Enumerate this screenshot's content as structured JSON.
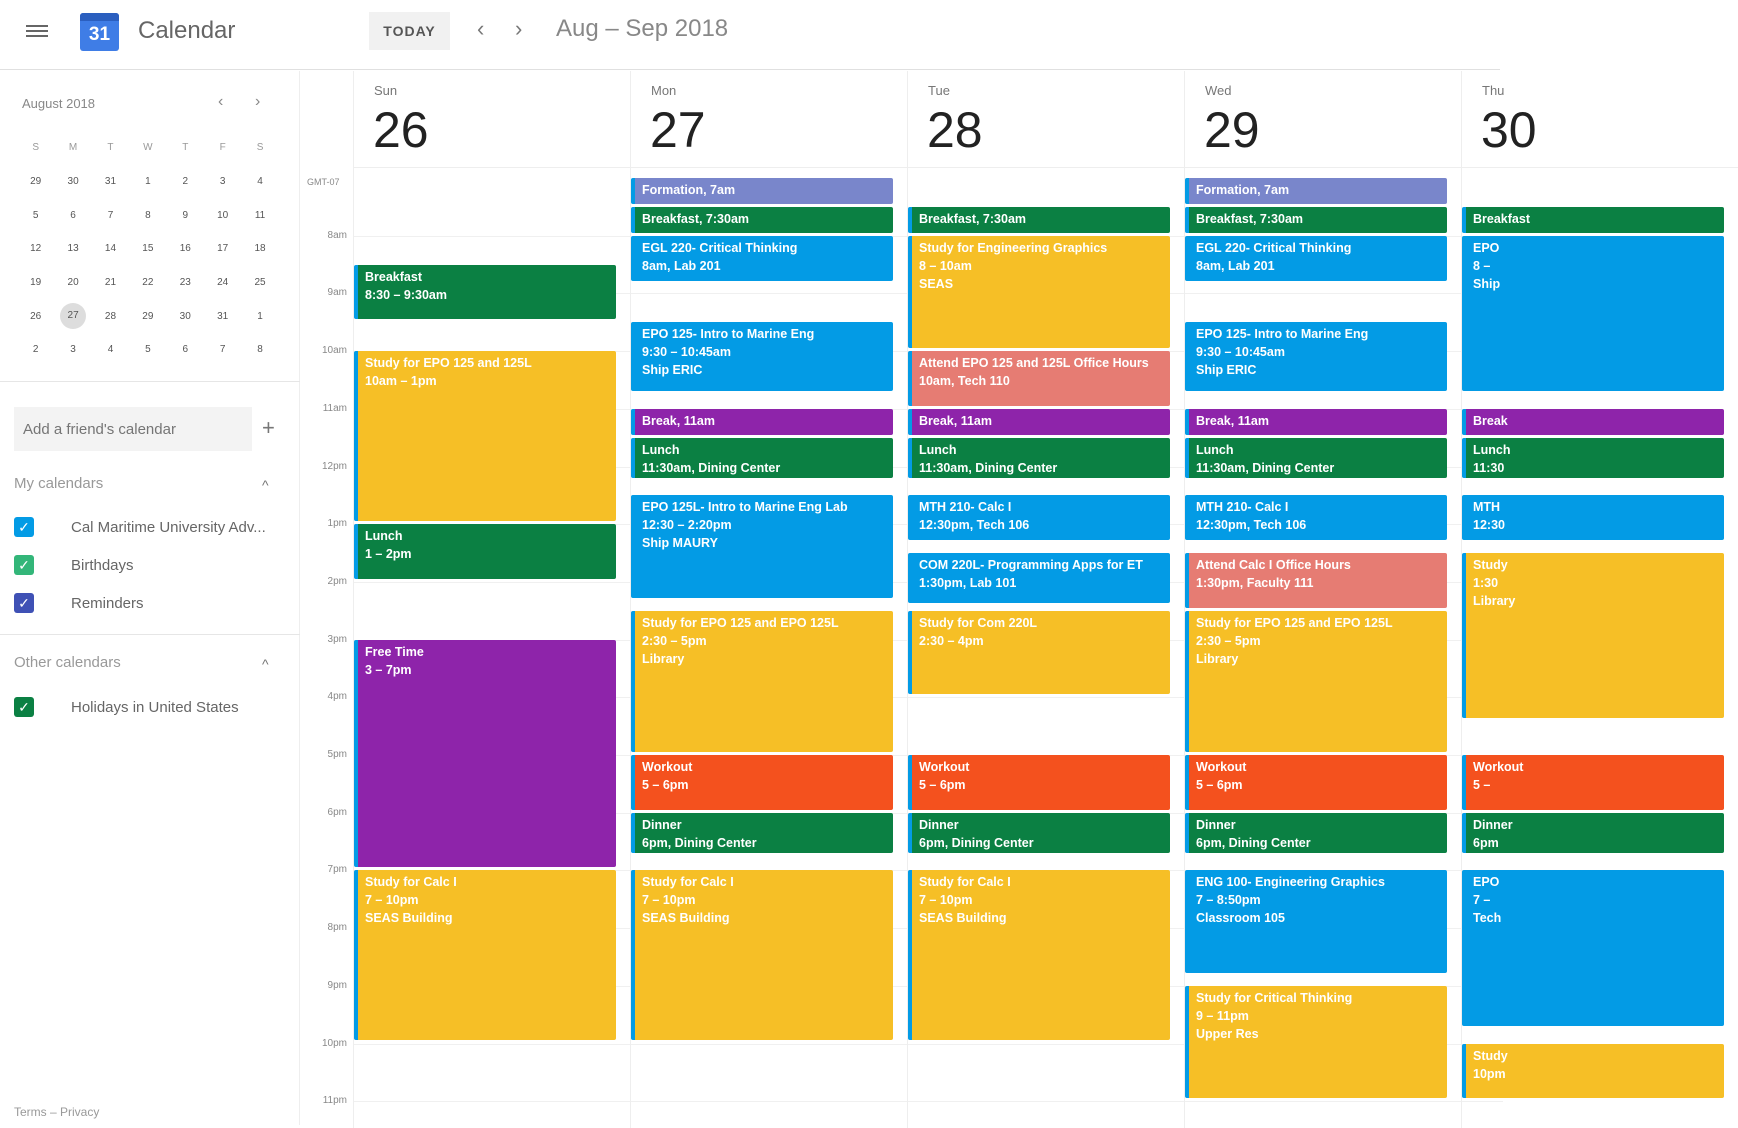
{
  "header": {
    "app_title": "Calendar",
    "logo_text": "31",
    "today_label": "TODAY",
    "prev": "‹",
    "next": "›",
    "range": "Aug – Sep 2018"
  },
  "mini": {
    "title": "August 2018",
    "prev": "‹",
    "next": "›",
    "dow": [
      "S",
      "M",
      "T",
      "W",
      "T",
      "F",
      "S"
    ],
    "weeks": [
      [
        "29",
        "30",
        "31",
        "1",
        "2",
        "3",
        "4"
      ],
      [
        "5",
        "6",
        "7",
        "8",
        "9",
        "10",
        "11"
      ],
      [
        "12",
        "13",
        "14",
        "15",
        "16",
        "17",
        "18"
      ],
      [
        "19",
        "20",
        "21",
        "22",
        "23",
        "24",
        "25"
      ],
      [
        "26",
        "27",
        "28",
        "29",
        "30",
        "31",
        "1"
      ],
      [
        "2",
        "3",
        "4",
        "5",
        "6",
        "7",
        "8"
      ]
    ],
    "selected": "27"
  },
  "sidebar": {
    "add_friend_placeholder": "Add a friend's calendar",
    "plus": "+",
    "my_title": "My calendars",
    "other_title": "Other calendars",
    "caret": "^",
    "my": [
      {
        "label": "Cal Maritime University Adv...",
        "color": "#039be5"
      },
      {
        "label": "Birthdays",
        "color": "#33b679"
      },
      {
        "label": "Reminders",
        "color": "#3f51b5"
      }
    ],
    "other": [
      {
        "label": "Holidays in United States",
        "color": "#0b8043"
      }
    ],
    "check": "✓",
    "footer": "Terms – Privacy"
  },
  "timezone": "GMT-07",
  "hours": [
    "8am",
    "9am",
    "10am",
    "11am",
    "12pm",
    "1pm",
    "2pm",
    "3pm",
    "4pm",
    "5pm",
    "6pm",
    "7pm",
    "8pm",
    "9pm",
    "10pm",
    "11pm"
  ],
  "colors": {
    "blue": "#039be5",
    "green": "#0b8043",
    "yellow": "#f6bf26",
    "purple": "#8e24aa",
    "lavender": "#7986cb",
    "red": "#f4511e",
    "flamingo": "#e67c73"
  },
  "days": [
    {
      "dow": "Sun",
      "num": "26",
      "events": [
        {
          "title": "Breakfast",
          "time": "8:30 – 9:30am",
          "start": "08:30",
          "end": "09:30",
          "color": "green"
        },
        {
          "title": "Study for EPO 125 and 125L",
          "time": "10am – 1pm",
          "start": "10:00",
          "end": "13:00",
          "color": "yellow"
        },
        {
          "title": "Lunch",
          "time": "1 – 2pm",
          "start": "13:00",
          "end": "14:00",
          "color": "green"
        },
        {
          "title": "Free Time",
          "time": "3 – 7pm",
          "start": "15:00",
          "end": "19:00",
          "color": "purple"
        },
        {
          "title": "Study for Calc I",
          "time": "7 – 10pm",
          "loc": "SEAS Building",
          "start": "19:00",
          "end": "22:00",
          "color": "yellow"
        }
      ]
    },
    {
      "dow": "Mon",
      "num": "27",
      "events": [
        {
          "title": "Formation, 7am",
          "start": "07:00",
          "end": "07:30",
          "color": "lavender"
        },
        {
          "title": "Breakfast, 7:30am",
          "start": "07:30",
          "end": "08:00",
          "color": "green"
        },
        {
          "title": "EGL 220- Critical Thinking",
          "time": "8am, Lab 201",
          "start": "08:00",
          "end": "08:50",
          "color": "blue"
        },
        {
          "title": "EPO 125- Intro to Marine Eng",
          "time": "9:30 – 10:45am",
          "loc": "Ship ERIC",
          "start": "09:30",
          "end": "10:45",
          "color": "blue"
        },
        {
          "title": "Break, 11am",
          "start": "11:00",
          "end": "11:30",
          "color": "purple"
        },
        {
          "title": "Lunch",
          "time": "11:30am, Dining Center",
          "start": "11:30",
          "end": "12:15",
          "color": "green"
        },
        {
          "title": "EPO 125L- Intro to Marine Eng Lab",
          "time": "12:30 – 2:20pm",
          "loc": "Ship MAURY",
          "start": "12:30",
          "end": "14:20",
          "color": "blue"
        },
        {
          "title": "Study for EPO 125 and EPO 125L",
          "time": "2:30 – 5pm",
          "loc": "Library",
          "start": "14:30",
          "end": "17:00",
          "color": "yellow"
        },
        {
          "title": "Workout",
          "time": "5 – 6pm",
          "start": "17:00",
          "end": "18:00",
          "color": "red"
        },
        {
          "title": "Dinner",
          "time": "6pm, Dining Center",
          "start": "18:00",
          "end": "18:45",
          "color": "green"
        },
        {
          "title": "Study for Calc I",
          "time": "7 – 10pm",
          "loc": "SEAS Building",
          "start": "19:00",
          "end": "22:00",
          "color": "yellow"
        }
      ]
    },
    {
      "dow": "Tue",
      "num": "28",
      "events": [
        {
          "title": "Breakfast, 7:30am",
          "start": "07:30",
          "end": "08:00",
          "color": "green"
        },
        {
          "title": "Study for Engineering Graphics",
          "time": "8 – 10am",
          "loc": "SEAS",
          "start": "08:00",
          "end": "10:00",
          "color": "yellow"
        },
        {
          "title": "Attend EPO 125 and 125L Office Hours",
          "time": "10am, Tech 110",
          "start": "10:00",
          "end": "11:00",
          "color": "flamingo"
        },
        {
          "title": "Break, 11am",
          "start": "11:00",
          "end": "11:30",
          "color": "purple"
        },
        {
          "title": "Lunch",
          "time": "11:30am, Dining Center",
          "start": "11:30",
          "end": "12:15",
          "color": "green"
        },
        {
          "title": "MTH 210- Calc I",
          "time": "12:30pm, Tech 106",
          "start": "12:30",
          "end": "13:20",
          "color": "blue"
        },
        {
          "title": "COM 220L- Programming Apps for ET",
          "time": "1:30pm, Lab 101",
          "start": "13:30",
          "end": "14:25",
          "color": "blue"
        },
        {
          "title": "Study for Com 220L",
          "time": "2:30 – 4pm",
          "start": "14:30",
          "end": "16:00",
          "color": "yellow"
        },
        {
          "title": "Workout",
          "time": "5 – 6pm",
          "start": "17:00",
          "end": "18:00",
          "color": "red"
        },
        {
          "title": "Dinner",
          "time": "6pm, Dining Center",
          "start": "18:00",
          "end": "18:45",
          "color": "green"
        },
        {
          "title": "Study for Calc I",
          "time": "7 – 10pm",
          "loc": "SEAS Building",
          "start": "19:00",
          "end": "22:00",
          "color": "yellow"
        }
      ]
    },
    {
      "dow": "Wed",
      "num": "29",
      "events": [
        {
          "title": "Formation, 7am",
          "start": "07:00",
          "end": "07:30",
          "color": "lavender"
        },
        {
          "title": "Breakfast, 7:30am",
          "start": "07:30",
          "end": "08:00",
          "color": "green"
        },
        {
          "title": "EGL 220- Critical Thinking",
          "time": "8am, Lab 201",
          "start": "08:00",
          "end": "08:50",
          "color": "blue"
        },
        {
          "title": "EPO 125- Intro to Marine Eng",
          "time": "9:30 – 10:45am",
          "loc": "Ship ERIC",
          "start": "09:30",
          "end": "10:45",
          "color": "blue"
        },
        {
          "title": "Break, 11am",
          "start": "11:00",
          "end": "11:30",
          "color": "purple"
        },
        {
          "title": "Lunch",
          "time": "11:30am, Dining Center",
          "start": "11:30",
          "end": "12:15",
          "color": "green"
        },
        {
          "title": "MTH 210- Calc I",
          "time": "12:30pm, Tech 106",
          "start": "12:30",
          "end": "13:20",
          "color": "blue"
        },
        {
          "title": "Attend Calc I Office Hours",
          "time": "1:30pm, Faculty 111",
          "start": "13:30",
          "end": "14:30",
          "color": "flamingo"
        },
        {
          "title": "Study for EPO 125 and EPO 125L",
          "time": "2:30 – 5pm",
          "loc": "Library",
          "start": "14:30",
          "end": "17:00",
          "color": "yellow"
        },
        {
          "title": "Workout",
          "time": "5 – 6pm",
          "start": "17:00",
          "end": "18:00",
          "color": "red"
        },
        {
          "title": "Dinner",
          "time": "6pm, Dining Center",
          "start": "18:00",
          "end": "18:45",
          "color": "green"
        },
        {
          "title": "ENG 100- Engineering Graphics",
          "time": "7 – 8:50pm",
          "loc": "Classroom 105",
          "start": "19:00",
          "end": "20:50",
          "color": "blue"
        },
        {
          "title": "Study for Critical Thinking",
          "time": "9 – 11pm",
          "loc": "Upper Res",
          "start": "21:00",
          "end": "23:00",
          "color": "yellow"
        }
      ]
    },
    {
      "dow": "Thu",
      "num": "30",
      "events": [
        {
          "title": "Breakfast",
          "start": "07:30",
          "end": "08:00",
          "color": "green"
        },
        {
          "title": "EPO",
          "time": "8 –",
          "loc": "Ship",
          "start": "08:00",
          "end": "10:45",
          "color": "blue"
        },
        {
          "title": "Break",
          "start": "11:00",
          "end": "11:30",
          "color": "purple"
        },
        {
          "title": "Lunch",
          "time": "11:30",
          "start": "11:30",
          "end": "12:15",
          "color": "green"
        },
        {
          "title": "MTH",
          "time": "12:30",
          "start": "12:30",
          "end": "13:20",
          "color": "blue"
        },
        {
          "title": "Study",
          "time": "1:30",
          "loc": "Library",
          "start": "13:30",
          "end": "16:25",
          "color": "yellow"
        },
        {
          "title": "Workout",
          "time": "5 –",
          "start": "17:00",
          "end": "18:00",
          "color": "red"
        },
        {
          "title": "Dinner",
          "time": "6pm",
          "start": "18:00",
          "end": "18:45",
          "color": "green"
        },
        {
          "title": "EPO",
          "time": "7 –",
          "loc": "Tech",
          "start": "19:00",
          "end": "21:45",
          "color": "blue"
        },
        {
          "title": "Study",
          "time": "10pm",
          "start": "22:00",
          "end": "23:00",
          "color": "yellow"
        }
      ]
    }
  ]
}
